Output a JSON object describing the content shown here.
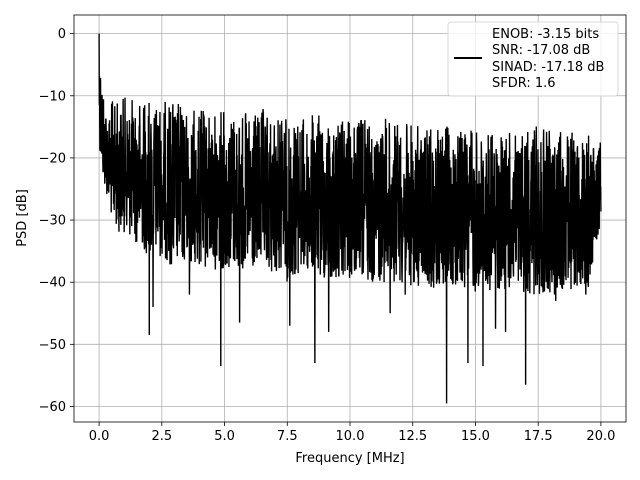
{
  "chart_data": {
    "type": "line",
    "title": "",
    "xlabel": "Frequency [MHz]",
    "ylabel": "PSD [dB]",
    "xlim": [
      -1.0,
      21.0
    ],
    "ylim": [
      -62.5,
      3.0
    ],
    "xticks": [
      0.0,
      2.5,
      5.0,
      7.5,
      10.0,
      12.5,
      15.0,
      17.5,
      20.0
    ],
    "xtick_labels": [
      "0.0",
      "2.5",
      "5.0",
      "7.5",
      "10.0",
      "12.5",
      "15.0",
      "17.5",
      "20.0"
    ],
    "yticks": [
      0,
      -10,
      -20,
      -30,
      -40,
      -50,
      -60
    ],
    "ytick_labels": [
      "0",
      "−10",
      "−20",
      "−30",
      "−40",
      "−50",
      "−60"
    ],
    "grid": true,
    "legend": {
      "placement": "top-right",
      "entries": [
        "ENOB: -3.15 bits",
        "SNR: -17.08 dB",
        "SINAD: -17.18 dB",
        "SFDR: 1.6"
      ]
    },
    "series": [
      {
        "color": "#000000",
        "envelope_x": [
          0.0,
          0.02,
          0.05,
          0.1,
          0.15,
          0.2,
          0.3,
          0.4,
          0.5,
          0.6,
          0.8,
          1.0,
          1.5,
          2.0,
          2.5,
          3.0,
          3.5,
          4.0,
          4.5,
          5.0,
          5.5,
          6.0,
          6.5,
          7.0,
          7.5,
          8.0,
          8.5,
          9.0,
          9.5,
          10.0,
          10.5,
          11.0,
          11.5,
          12.0,
          12.5,
          13.0,
          13.5,
          14.0,
          14.5,
          15.0,
          15.5,
          16.0,
          16.5,
          17.0,
          17.5,
          18.0,
          18.5,
          19.0,
          19.5,
          20.0
        ],
        "envelope_max": [
          0.0,
          -1.0,
          -3.0,
          -5.0,
          -7.0,
          -9.0,
          -11.0,
          -12.0,
          -10.5,
          -11.0,
          -10.5,
          -10.0,
          -10.5,
          -10.0,
          -11.0,
          -10.0,
          -12.0,
          -12.0,
          -12.5,
          -12.0,
          -12.0,
          -13.0,
          -12.0,
          -13.0,
          -13.0,
          -13.5,
          -13.0,
          -13.0,
          -13.5,
          -14.0,
          -13.0,
          -14.0,
          -13.5,
          -14.0,
          -14.5,
          -15.0,
          -14.5,
          -15.0,
          -15.0,
          -15.0,
          -15.5,
          -15.5,
          -16.0,
          -14.5,
          -15.0,
          -15.5,
          -15.0,
          -15.5,
          -16.0,
          -16.0
        ],
        "envelope_min": [
          -15.0,
          -18.0,
          -20.0,
          -22.0,
          -24.0,
          -25.0,
          -26.0,
          -28.0,
          -30.0,
          -31.0,
          -32.0,
          -32.0,
          -34.0,
          -36.0,
          -36.0,
          -38.0,
          -37.0,
          -38.0,
          -38.0,
          -38.0,
          -38.0,
          -39.0,
          -38.0,
          -39.0,
          -40.0,
          -39.0,
          -39.0,
          -40.0,
          -40.0,
          -40.0,
          -40.0,
          -40.0,
          -40.0,
          -40.0,
          -41.0,
          -41.0,
          -41.0,
          -41.0,
          -41.0,
          -42.0,
          -42.0,
          -41.0,
          -42.0,
          -42.0,
          -42.0,
          -42.0,
          -42.0,
          -41.0,
          -41.0,
          -30.0
        ],
        "dips": [
          {
            "x": 2.0,
            "y": -48.5
          },
          {
            "x": 2.15,
            "y": -44.0
          },
          {
            "x": 4.85,
            "y": -53.5
          },
          {
            "x": 5.6,
            "y": -46.5
          },
          {
            "x": 7.6,
            "y": -47.0
          },
          {
            "x": 8.6,
            "y": -53.0
          },
          {
            "x": 9.15,
            "y": -48.0
          },
          {
            "x": 13.85,
            "y": -59.5
          },
          {
            "x": 14.7,
            "y": -53.0
          },
          {
            "x": 15.3,
            "y": -53.5
          },
          {
            "x": 15.8,
            "y": -47.5
          },
          {
            "x": 17.0,
            "y": -56.5
          },
          {
            "x": 16.2,
            "y": -48.0
          },
          {
            "x": 11.6,
            "y": -45.0
          },
          {
            "x": 12.2,
            "y": -42.0
          },
          {
            "x": 3.6,
            "y": -42.0
          },
          {
            "x": 18.2,
            "y": -43.0
          },
          {
            "x": 19.4,
            "y": -42.0
          }
        ]
      }
    ]
  }
}
